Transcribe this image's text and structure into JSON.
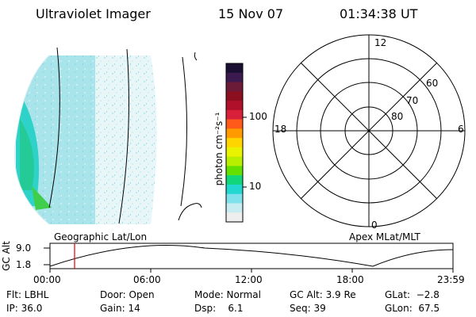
{
  "header": {
    "title": "Ultraviolet Imager",
    "date": "15 Nov 07",
    "time": "01:34:38 UT"
  },
  "colorbar": {
    "unit_label": "photon cm⁻²s⁻¹",
    "ticks": [
      "100",
      "10"
    ],
    "colors": [
      "#1a0f33",
      "#3b1a4f",
      "#6b1a38",
      "#8b0f1f",
      "#b0102a",
      "#d8203a",
      "#ff5a1a",
      "#ff9a00",
      "#ffd500",
      "#e9f200",
      "#b8ee00",
      "#63e000",
      "#12d67a",
      "#21d7d0",
      "#7ee1ec",
      "#c7ecf2",
      "#eeeeee"
    ]
  },
  "polar": {
    "hour_labels": {
      "top": "12",
      "left": "18",
      "right": "6",
      "bottom": "0"
    },
    "lat_labels": [
      "60",
      "70",
      "80"
    ]
  },
  "altitude_panel": {
    "ylabel": "GC Alt",
    "y_ticks": [
      "9.0",
      "1.8"
    ],
    "left_label": "Geographic Lat/Lon",
    "right_label": "Apex MLat/MLT",
    "x_ticks": [
      "00:00",
      "06:00",
      "12:00",
      "18:00",
      "23:59"
    ]
  },
  "footer": {
    "flt": "Flt: LBHL",
    "ip": "IP: 36.0",
    "door": "Door: Open",
    "gain": "Gain: 14",
    "mode": "Mode: Normal",
    "dsp": "Dsp:    6.1",
    "gcalt": "GC Alt: 3.9 Re",
    "seq": "Seq: 39",
    "glat": "GLat:  −2.8",
    "glon": "GLon:  67.5"
  }
}
